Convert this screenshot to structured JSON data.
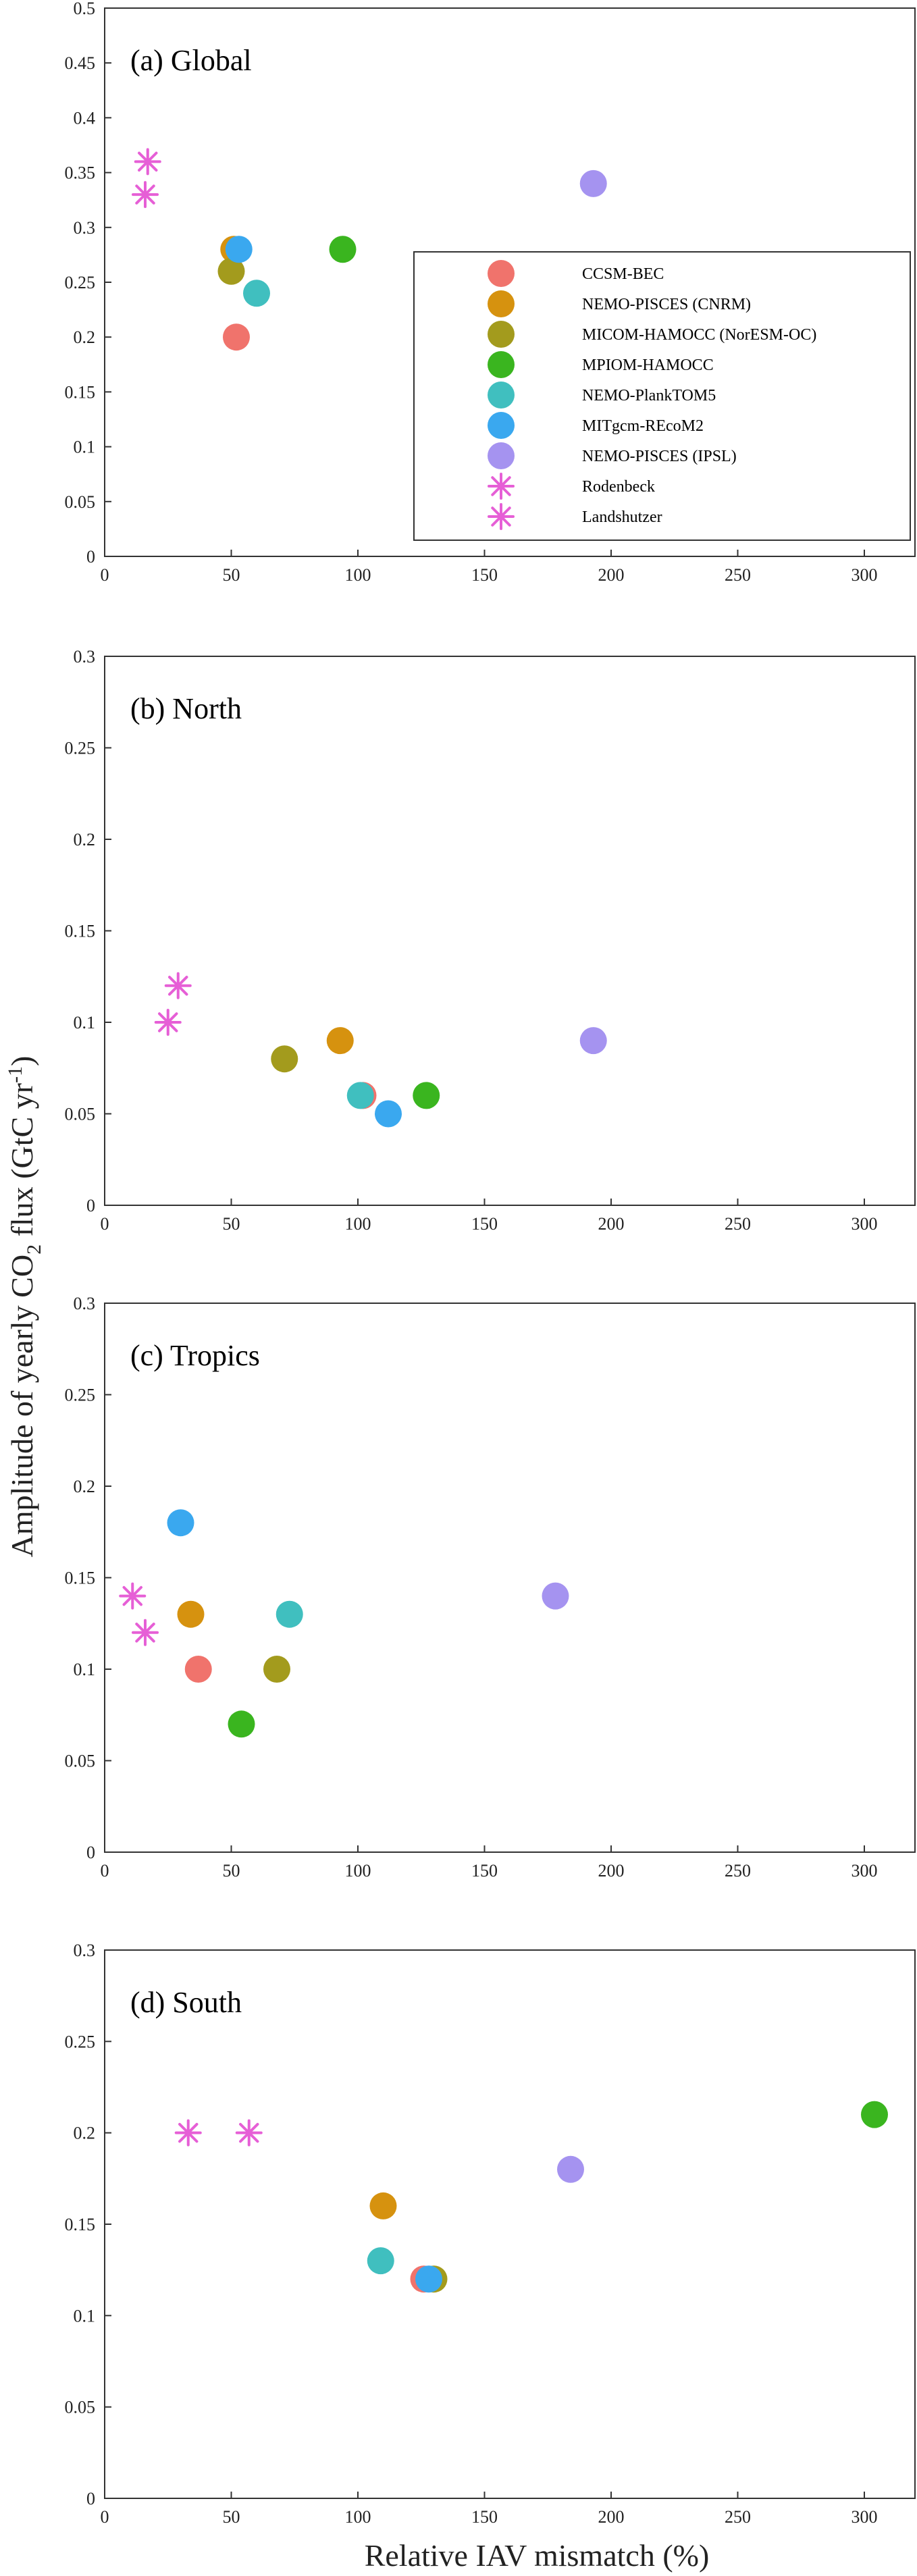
{
  "figure": {
    "xlabel": "Relative IAV mismatch (%)",
    "ylabel_parts": {
      "main": "Amplitude of yearly CO",
      "sub": "2",
      "mid": " flux (GtC yr",
      "sup": "-1",
      "end": ")"
    }
  },
  "series_styles": [
    {
      "name": "CCSM-BEC",
      "marker": "circle",
      "color": "#f0736c"
    },
    {
      "name": "NEMO-PISCES (CNRM)",
      "marker": "circle",
      "color": "#d6920f"
    },
    {
      "name": "MICOM-HAMOCC (NorESM-OC)",
      "marker": "circle",
      "color": "#a39b1d"
    },
    {
      "name": "MPIOM-HAMOCC",
      "marker": "circle",
      "color": "#3ab51f"
    },
    {
      "name": "NEMO-PlankTOM5",
      "marker": "circle",
      "color": "#40bfbf"
    },
    {
      "name": "MITgcm-REcoM2",
      "marker": "circle",
      "color": "#3aa8ef"
    },
    {
      "name": "NEMO-PISCES (IPSL)",
      "marker": "circle",
      "color": "#a593f0"
    },
    {
      "name": "Rodenbeck",
      "marker": "asterisk",
      "color": "#e65fd6"
    },
    {
      "name": "Landshutzer",
      "marker": "asterisk",
      "color": "#e65fd6"
    }
  ],
  "chart_data": [
    {
      "type": "scatter",
      "title": "(a)  Global",
      "xlim": [
        0,
        320
      ],
      "ylim": [
        0,
        0.5
      ],
      "xticks": [
        "0",
        "50",
        "100",
        "150",
        "200",
        "250",
        "300"
      ],
      "yticks": [
        "0",
        "0.05",
        "0.1",
        "0.15",
        "0.2",
        "0.25",
        "0.3",
        "0.35",
        "0.4",
        "0.45",
        "0.5"
      ],
      "legend": "inside-lower-right",
      "series": [
        {
          "name": "CCSM-BEC",
          "x": [
            52
          ],
          "y": [
            0.2
          ]
        },
        {
          "name": "NEMO-PISCES (CNRM)",
          "x": [
            51
          ],
          "y": [
            0.28
          ]
        },
        {
          "name": "MICOM-HAMOCC (NorESM-OC)",
          "x": [
            50
          ],
          "y": [
            0.26
          ]
        },
        {
          "name": "MPIOM-HAMOCC",
          "x": [
            94
          ],
          "y": [
            0.28
          ]
        },
        {
          "name": "NEMO-PlankTOM5",
          "x": [
            60
          ],
          "y": [
            0.24
          ]
        },
        {
          "name": "MITgcm-REcoM2",
          "x": [
            53
          ],
          "y": [
            0.28
          ]
        },
        {
          "name": "NEMO-PISCES (IPSL)",
          "x": [
            193
          ],
          "y": [
            0.34
          ]
        },
        {
          "name": "Rodenbeck",
          "x": [
            17
          ],
          "y": [
            0.36
          ]
        },
        {
          "name": "Landshutzer",
          "x": [
            16
          ],
          "y": [
            0.33
          ]
        }
      ]
    },
    {
      "type": "scatter",
      "title": "(b)  North",
      "xlim": [
        0,
        320
      ],
      "ylim": [
        0,
        0.3
      ],
      "xticks": [
        "0",
        "50",
        "100",
        "150",
        "200",
        "250",
        "300"
      ],
      "yticks": [
        "0",
        "0.05",
        "0.1",
        "0.15",
        "0.2",
        "0.25",
        "0.3"
      ],
      "series": [
        {
          "name": "CCSM-BEC",
          "x": [
            102
          ],
          "y": [
            0.06
          ]
        },
        {
          "name": "NEMO-PISCES (CNRM)",
          "x": [
            93
          ],
          "y": [
            0.09
          ]
        },
        {
          "name": "MICOM-HAMOCC (NorESM-OC)",
          "x": [
            71
          ],
          "y": [
            0.08
          ]
        },
        {
          "name": "MPIOM-HAMOCC",
          "x": [
            127
          ],
          "y": [
            0.06
          ]
        },
        {
          "name": "NEMO-PlankTOM5",
          "x": [
            101
          ],
          "y": [
            0.06
          ]
        },
        {
          "name": "MITgcm-REcoM2",
          "x": [
            112
          ],
          "y": [
            0.05
          ]
        },
        {
          "name": "NEMO-PISCES (IPSL)",
          "x": [
            193
          ],
          "y": [
            0.09
          ]
        },
        {
          "name": "Rodenbeck",
          "x": [
            29
          ],
          "y": [
            0.12
          ]
        },
        {
          "name": "Landshutzer",
          "x": [
            25
          ],
          "y": [
            0.1
          ]
        }
      ]
    },
    {
      "type": "scatter",
      "title": "(c)  Tropics",
      "xlim": [
        0,
        320
      ],
      "ylim": [
        0,
        0.3
      ],
      "xticks": [
        "0",
        "50",
        "100",
        "150",
        "200",
        "250",
        "300"
      ],
      "yticks": [
        "0",
        "0.05",
        "0.1",
        "0.15",
        "0.2",
        "0.25",
        "0.3"
      ],
      "series": [
        {
          "name": "CCSM-BEC",
          "x": [
            37
          ],
          "y": [
            0.1
          ]
        },
        {
          "name": "NEMO-PISCES (CNRM)",
          "x": [
            34
          ],
          "y": [
            0.13
          ]
        },
        {
          "name": "MICOM-HAMOCC (NorESM-OC)",
          "x": [
            68
          ],
          "y": [
            0.1
          ]
        },
        {
          "name": "MPIOM-HAMOCC",
          "x": [
            54
          ],
          "y": [
            0.07
          ]
        },
        {
          "name": "NEMO-PlankTOM5",
          "x": [
            73
          ],
          "y": [
            0.13
          ]
        },
        {
          "name": "MITgcm-REcoM2",
          "x": [
            30
          ],
          "y": [
            0.18
          ]
        },
        {
          "name": "NEMO-PISCES (IPSL)",
          "x": [
            178
          ],
          "y": [
            0.14
          ]
        },
        {
          "name": "Rodenbeck",
          "x": [
            11
          ],
          "y": [
            0.14
          ]
        },
        {
          "name": "Landshutzer",
          "x": [
            16
          ],
          "y": [
            0.12
          ]
        }
      ]
    },
    {
      "type": "scatter",
      "title": "(d)  South",
      "xlim": [
        0,
        320
      ],
      "ylim": [
        0,
        0.3
      ],
      "xticks": [
        "0",
        "50",
        "100",
        "150",
        "200",
        "250",
        "300"
      ],
      "yticks": [
        "0",
        "0.05",
        "0.1",
        "0.15",
        "0.2",
        "0.25",
        "0.3"
      ],
      "series": [
        {
          "name": "CCSM-BEC",
          "x": [
            126
          ],
          "y": [
            0.12
          ]
        },
        {
          "name": "NEMO-PISCES (CNRM)",
          "x": [
            110
          ],
          "y": [
            0.16
          ]
        },
        {
          "name": "MICOM-HAMOCC (NorESM-OC)",
          "x": [
            130
          ],
          "y": [
            0.12
          ]
        },
        {
          "name": "MPIOM-HAMOCC",
          "x": [
            304
          ],
          "y": [
            0.21
          ]
        },
        {
          "name": "NEMO-PlankTOM5",
          "x": [
            109
          ],
          "y": [
            0.13
          ]
        },
        {
          "name": "MITgcm-REcoM2",
          "x": [
            128
          ],
          "y": [
            0.12
          ]
        },
        {
          "name": "NEMO-PISCES (IPSL)",
          "x": [
            184
          ],
          "y": [
            0.18
          ]
        },
        {
          "name": "Rodenbeck",
          "x": [
            57
          ],
          "y": [
            0.2
          ]
        },
        {
          "name": "Landshutzer",
          "x": [
            33
          ],
          "y": [
            0.2
          ]
        }
      ]
    }
  ]
}
